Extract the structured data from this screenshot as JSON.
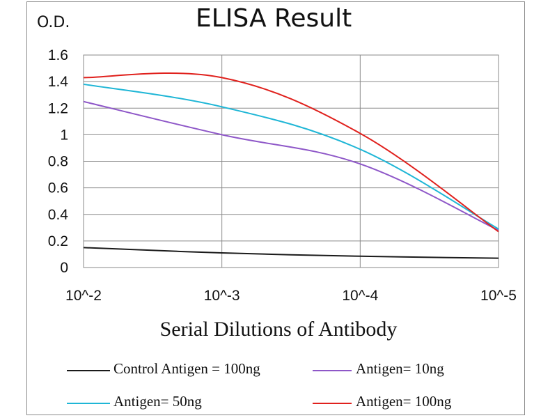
{
  "chart_data": {
    "type": "line",
    "title": "ELISA Result",
    "ylabel": "O.D.",
    "xlabel": "Serial Dilutions  of Antibody",
    "x": [
      "10^-2",
      "10^-3",
      "10^-4",
      "10^-5"
    ],
    "ylim": [
      0,
      1.6
    ],
    "yticks": [
      "0",
      "0.2",
      "0.4",
      "0.6",
      "0.8",
      "1",
      "1.2",
      "1.4",
      "1.6"
    ],
    "grid": true,
    "legend_position": "bottom",
    "series": [
      {
        "name": "Control Antigen = 100ng",
        "color": "#1a1a1a",
        "values": [
          0.15,
          0.11,
          0.085,
          0.07
        ]
      },
      {
        "name": "Antigen= 10ng",
        "color": "#8e57c8",
        "values": [
          1.25,
          1.0,
          0.78,
          0.28
        ]
      },
      {
        "name": "Antigen= 50ng",
        "color": "#1fb6d6",
        "values": [
          1.38,
          1.21,
          0.89,
          0.29
        ]
      },
      {
        "name": "Antigen= 100ng",
        "color": "#e0211d",
        "values": [
          1.43,
          1.43,
          1.01,
          0.27
        ]
      }
    ]
  }
}
